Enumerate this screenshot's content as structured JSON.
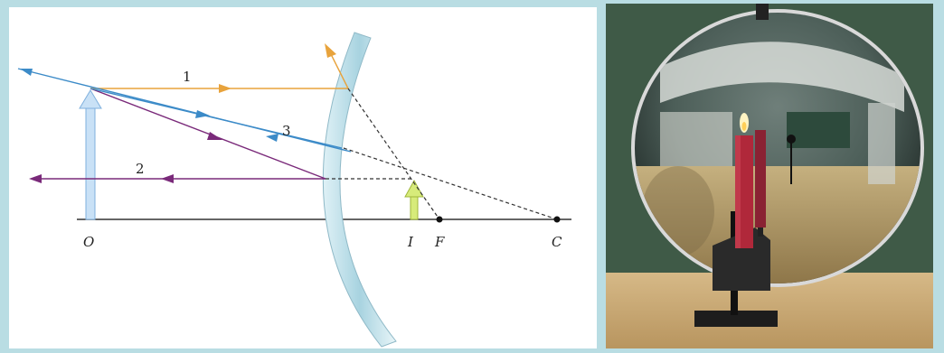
{
  "diagram": {
    "ray_labels": [
      "1",
      "2",
      "3"
    ],
    "point_labels": {
      "object": "O",
      "image": "I",
      "focal": "F",
      "center": "C"
    },
    "colors": {
      "ray1": "#e8a33c",
      "ray2": "#7a2a7a",
      "ray3": "#3c8bc8",
      "object_arrow": "#9cc9ef",
      "image_arrow": "#c8e25a",
      "mirror": "#bfe0ea",
      "axis": "#333333"
    }
  },
  "photo": {
    "subject": "convex-mirror-with-candle",
    "colors": {
      "wall": "#3f5a47",
      "table": "#c9a877",
      "candle": "#b0283a",
      "mirror_rim": "#d9d9d9"
    }
  }
}
